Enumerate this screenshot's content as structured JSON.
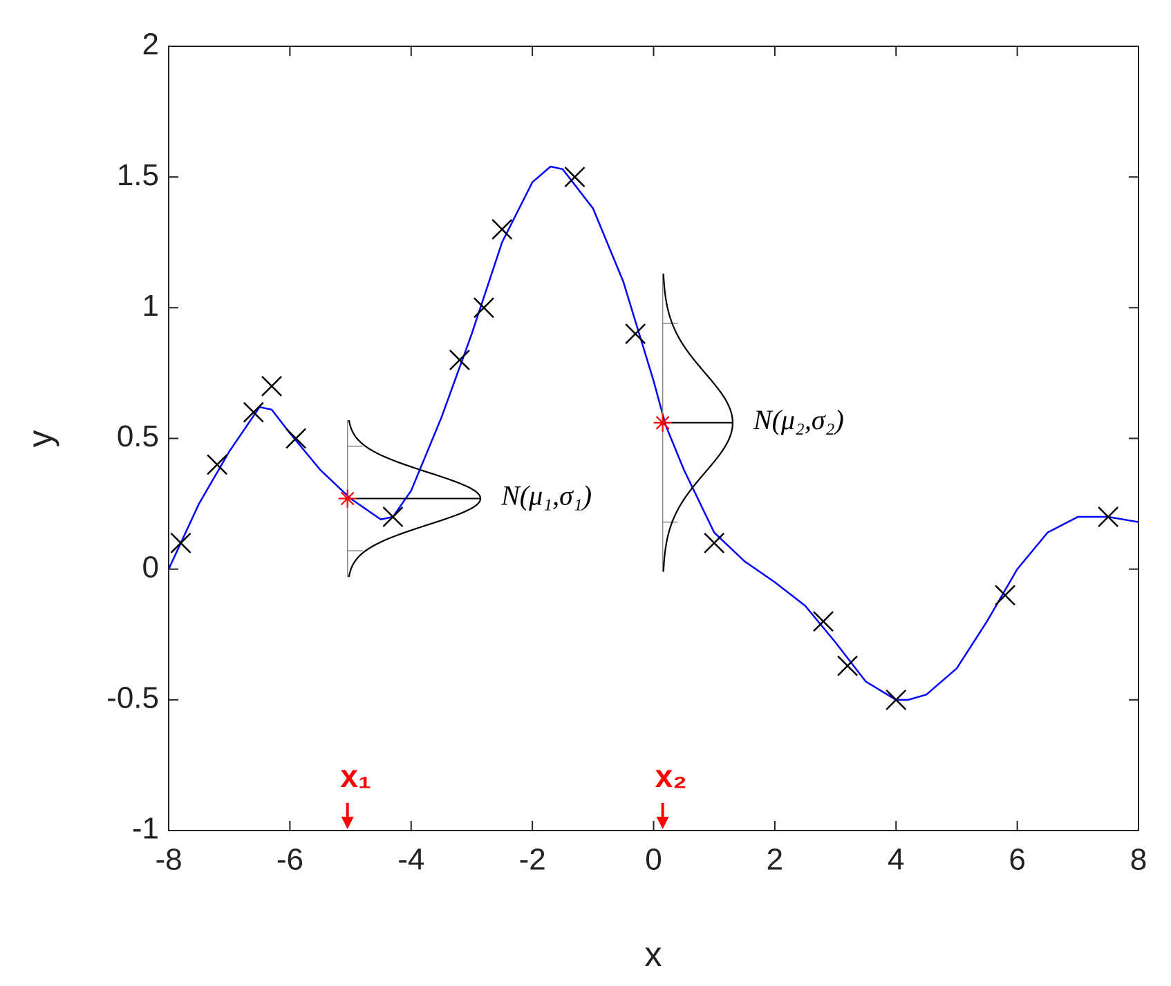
{
  "chart_data": {
    "type": "line",
    "xlabel": "x",
    "ylabel": "y",
    "xlim": [
      -8,
      8
    ],
    "ylim": [
      -1,
      2
    ],
    "xticks": [
      -8,
      -6,
      -4,
      -2,
      0,
      2,
      4,
      6,
      8
    ],
    "yticks": [
      -1,
      -0.5,
      0,
      0.5,
      1,
      1.5,
      2
    ],
    "series": [
      {
        "style": "line",
        "color": "#0000ff",
        "x": [
          -8,
          -7.5,
          -7,
          -6.5,
          -6.3,
          -6,
          -5.5,
          -5,
          -4.5,
          -4.3,
          -4,
          -3.5,
          -3,
          -2.5,
          -2,
          -1.7,
          -1.5,
          -1,
          -0.5,
          0,
          0.2,
          0.5,
          1,
          1.5,
          2,
          2.5,
          3,
          3.5,
          4,
          4.2,
          4.5,
          5,
          5.5,
          6,
          6.5,
          7,
          7.5,
          8
        ],
        "values": [
          0,
          0.25,
          0.45,
          0.62,
          0.61,
          0.52,
          0.38,
          0.27,
          0.19,
          0.2,
          0.3,
          0.58,
          0.9,
          1.25,
          1.48,
          1.54,
          1.53,
          1.38,
          1.1,
          0.72,
          0.55,
          0.38,
          0.14,
          0.03,
          -0.05,
          -0.14,
          -0.28,
          -0.43,
          -0.5,
          -0.5,
          -0.48,
          -0.38,
          -0.2,
          0,
          0.14,
          0.2,
          0.2,
          0.18
        ]
      },
      {
        "style": "cross",
        "color": "#000000",
        "x": [
          -7.8,
          -7.2,
          -6.6,
          -6.3,
          -5.9,
          -4.3,
          -3.2,
          -2.8,
          -2.5,
          -1.3,
          -0.3,
          1,
          2.8,
          3.2,
          4,
          5.8,
          7.5
        ],
        "values": [
          0.1,
          0.4,
          0.6,
          0.7,
          0.5,
          0.2,
          0.8,
          1.0,
          1.3,
          1.5,
          0.9,
          0.1,
          -0.2,
          -0.37,
          -0.5,
          -0.1,
          0.2
        ]
      }
    ],
    "distributions": [
      {
        "x": -5.05,
        "mean": 0.27,
        "sd": 0.1,
        "label": "N(μ₁,σ₁)",
        "query_label": "x₁"
      },
      {
        "x": 0.15,
        "mean": 0.56,
        "sd": 0.19,
        "label": "N(μ₂,σ₂)",
        "query_label": "x₂"
      }
    ],
    "distribution_color": "#ff0000"
  }
}
